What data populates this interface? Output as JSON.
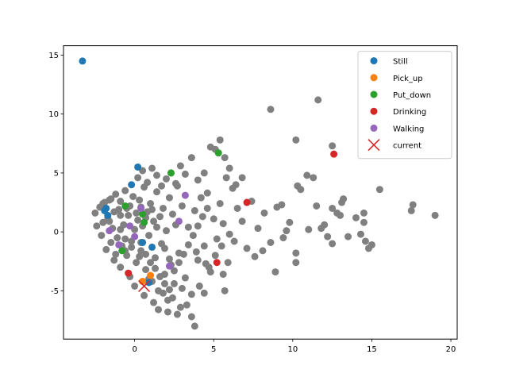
{
  "chart_data": {
    "type": "scatter",
    "title": "",
    "xlabel": "",
    "ylabel": "",
    "xlim": [
      -4.5,
      20.4
    ],
    "ylim": [
      -9.1,
      15.8
    ],
    "xticks": [
      0,
      5,
      10,
      15,
      20
    ],
    "yticks": [
      -5,
      0,
      5,
      10,
      15
    ],
    "grid": false,
    "legend_position": "top-right",
    "background": {
      "color": "#808080",
      "points": [
        [
          -2.5,
          1.6
        ],
        [
          -2.2,
          2.1
        ],
        [
          -2.0,
          0.8
        ],
        [
          -1.9,
          2.5
        ],
        [
          -1.7,
          1.2
        ],
        [
          -1.5,
          2.8
        ],
        [
          -1.4,
          0.3
        ],
        [
          -1.2,
          3.2
        ],
        [
          -1.1,
          -0.5
        ],
        [
          -1.0,
          1.9
        ],
        [
          -0.9,
          2.6
        ],
        [
          -0.8,
          -1.2
        ],
        [
          -0.7,
          0.6
        ],
        [
          -0.6,
          3.5
        ],
        [
          -0.5,
          -2.0
        ],
        [
          -0.4,
          1.4
        ],
        [
          -0.3,
          2.2
        ],
        [
          -0.2,
          -0.8
        ],
        [
          -0.1,
          3.0
        ],
        [
          0.0,
          0.2
        ],
        [
          0.1,
          -2.6
        ],
        [
          0.2,
          1.0
        ],
        [
          0.3,
          2.7
        ],
        [
          0.4,
          -1.6
        ],
        [
          0.5,
          0.5
        ],
        [
          0.6,
          3.8
        ],
        [
          0.7,
          -3.2
        ],
        [
          0.8,
          1.7
        ],
        [
          0.9,
          -0.3
        ],
        [
          1.0,
          2.4
        ],
        [
          1.1,
          -4.2
        ],
        [
          1.2,
          0.9
        ],
        [
          1.3,
          -2.2
        ],
        [
          1.4,
          3.4
        ],
        [
          1.5,
          -5.0
        ],
        [
          1.6,
          1.3
        ],
        [
          1.7,
          -1.0
        ],
        [
          1.8,
          2.0
        ],
        [
          1.9,
          -3.6
        ],
        [
          2.0,
          0.1
        ],
        [
          2.1,
          -5.8
        ],
        [
          2.2,
          2.9
        ],
        [
          2.3,
          -2.8
        ],
        [
          2.4,
          1.5
        ],
        [
          2.5,
          -4.4
        ],
        [
          2.6,
          0.6
        ],
        [
          2.7,
          3.9
        ],
        [
          2.8,
          -1.8
        ],
        [
          2.9,
          -6.4
        ],
        [
          3.0,
          2.2
        ],
        [
          3.2,
          -3.9
        ],
        [
          3.4,
          0.4
        ],
        [
          3.6,
          -5.3
        ],
        [
          3.8,
          1.8
        ],
        [
          4.0,
          -2.4
        ],
        [
          4.2,
          2.9
        ],
        [
          4.4,
          -1.2
        ],
        [
          4.6,
          3.3
        ],
        [
          4.8,
          -3.4
        ],
        [
          5.0,
          1.1
        ],
        [
          5.2,
          -0.6
        ],
        [
          5.4,
          2.4
        ],
        [
          5.6,
          0.7
        ],
        [
          5.8,
          4.6
        ],
        [
          6.0,
          -0.2
        ],
        [
          6.2,
          3.7
        ],
        [
          6.5,
          2.0
        ],
        [
          6.8,
          0.9
        ],
        [
          7.1,
          -1.4
        ],
        [
          7.4,
          2.6
        ],
        [
          7.8,
          0.3
        ],
        [
          8.2,
          1.6
        ],
        [
          8.6,
          -0.9
        ],
        [
          9.0,
          2.1
        ],
        [
          9.4,
          -0.5
        ],
        [
          9.8,
          0.8
        ],
        [
          10.2,
          -1.8
        ],
        [
          10.5,
          3.6
        ],
        [
          11.0,
          0.2
        ],
        [
          11.5,
          2.2
        ],
        [
          12.0,
          0.6
        ],
        [
          12.5,
          2.0
        ],
        [
          13.0,
          1.4
        ],
        [
          13.5,
          -0.4
        ],
        [
          14.0,
          1.2
        ],
        [
          14.5,
          0.8
        ],
        [
          15.0,
          -1.1
        ],
        [
          15.5,
          3.6
        ],
        [
          17.5,
          1.8
        ],
        [
          19.0,
          1.4
        ],
        [
          -2.4,
          0.5
        ],
        [
          -2.1,
          -0.3
        ],
        [
          -1.8,
          -1.5
        ],
        [
          -1.6,
          0.9
        ],
        [
          -1.3,
          -2.4
        ],
        [
          -0.9,
          -3.0
        ],
        [
          -0.6,
          -1.6
        ],
        [
          -0.3,
          -3.8
        ],
        [
          0.0,
          -4.6
        ],
        [
          0.3,
          -2.1
        ],
        [
          0.6,
          -5.4
        ],
        [
          0.9,
          -4.0
        ],
        [
          1.2,
          -6.0
        ],
        [
          1.5,
          -6.6
        ],
        [
          1.8,
          -5.2
        ],
        [
          2.1,
          -6.8
        ],
        [
          2.4,
          -5.6
        ],
        [
          2.7,
          -7.0
        ],
        [
          3.0,
          -4.8
        ],
        [
          3.3,
          -6.2
        ],
        [
          3.6,
          -7.2
        ],
        [
          3.8,
          -8.0
        ],
        [
          4.1,
          -4.6
        ],
        [
          4.4,
          -5.2
        ],
        [
          4.7,
          -3.0
        ],
        [
          5.1,
          -2.0
        ],
        [
          5.5,
          -1.2
        ],
        [
          5.9,
          -2.6
        ],
        [
          6.3,
          -0.8
        ],
        [
          0.2,
          4.6
        ],
        [
          0.5,
          5.2
        ],
        [
          0.8,
          4.2
        ],
        [
          1.1,
          5.4
        ],
        [
          1.4,
          4.8
        ],
        [
          1.7,
          3.9
        ],
        [
          2.0,
          4.5
        ],
        [
          2.3,
          5.0
        ],
        [
          2.6,
          4.1
        ],
        [
          2.9,
          5.6
        ],
        [
          3.2,
          4.9
        ],
        [
          3.6,
          6.3
        ],
        [
          4.0,
          4.4
        ],
        [
          4.4,
          5.0
        ],
        [
          4.8,
          7.2
        ],
        [
          5.1,
          7.0
        ],
        [
          5.4,
          7.8
        ],
        [
          5.7,
          6.3
        ],
        [
          6.0,
          5.4
        ],
        [
          6.4,
          4.0
        ],
        [
          6.8,
          4.6
        ],
        [
          8.6,
          10.4
        ],
        [
          10.2,
          7.8
        ],
        [
          11.6,
          11.2
        ],
        [
          12.5,
          7.3
        ],
        [
          10.9,
          4.8
        ],
        [
          11.3,
          4.6
        ],
        [
          10.3,
          3.9
        ],
        [
          12.8,
          1.6
        ],
        [
          13.2,
          2.8
        ],
        [
          14.6,
          -0.8
        ],
        [
          14.8,
          -1.4
        ],
        [
          14.3,
          -0.2
        ],
        [
          8.9,
          -3.4
        ],
        [
          10.2,
          -2.6
        ],
        [
          12.5,
          -1.0
        ],
        [
          14.5,
          1.6
        ],
        [
          17.6,
          2.3
        ],
        [
          9.3,
          2.3
        ],
        [
          9.6,
          0.1
        ],
        [
          11.8,
          0.3
        ],
        [
          12.2,
          -0.4
        ],
        [
          13.1,
          2.5
        ],
        [
          7.6,
          -2.1
        ],
        [
          8.1,
          -1.6
        ],
        [
          5.7,
          -5.0
        ],
        [
          5.6,
          -3.6
        ],
        [
          4.5,
          -2.7
        ],
        [
          3.9,
          -1.7
        ],
        [
          2.2,
          -2.3
        ],
        [
          1.9,
          -1.4
        ],
        [
          -1.5,
          -0.9
        ],
        [
          -1.2,
          -1.9
        ],
        [
          -0.9,
          0.2
        ],
        [
          -0.6,
          -0.6
        ],
        [
          -0.2,
          -1.3
        ],
        [
          0.4,
          -0.9
        ],
        [
          0.7,
          -1.9
        ],
        [
          1.0,
          -2.6
        ],
        [
          1.3,
          -3.1
        ],
        [
          1.6,
          -3.8
        ],
        [
          1.9,
          -4.4
        ],
        [
          2.2,
          -4.9
        ],
        [
          2.5,
          -3.3
        ],
        [
          2.8,
          -2.6
        ],
        [
          3.1,
          -1.9
        ],
        [
          3.4,
          -1.1
        ],
        [
          3.7,
          -0.3
        ],
        [
          4.0,
          0.5
        ],
        [
          4.3,
          1.3
        ],
        [
          4.6,
          2.0
        ],
        [
          -2.0,
          2.4
        ],
        [
          -1.6,
          2.7
        ],
        [
          -1.3,
          1.7
        ],
        [
          -0.9,
          1.4
        ],
        [
          -0.5,
          2.0
        ],
        [
          0.1,
          1.6
        ],
        [
          0.4,
          2.1
        ],
        [
          0.7,
          1.2
        ],
        [
          1.1,
          1.9
        ],
        [
          1.4,
          0.4
        ]
      ]
    },
    "series": [
      {
        "name": "Still",
        "color": "#1f77b4",
        "marker": "circle",
        "points": [
          [
            -3.3,
            14.5
          ],
          [
            0.2,
            5.5
          ],
          [
            -0.2,
            4.0
          ],
          [
            -1.8,
            2.0
          ],
          [
            -1.7,
            1.4
          ],
          [
            0.5,
            -0.9
          ],
          [
            1.1,
            -1.3
          ],
          [
            0.9,
            -4.3
          ],
          [
            -1.9,
            1.8
          ]
        ]
      },
      {
        "name": "Pick_up",
        "color": "#ff7f0e",
        "marker": "circle",
        "points": [
          [
            1.0,
            -3.7
          ],
          [
            0.5,
            -4.2
          ]
        ]
      },
      {
        "name": "Put_down",
        "color": "#2ca02c",
        "marker": "circle",
        "points": [
          [
            5.3,
            6.7
          ],
          [
            2.3,
            5.0
          ],
          [
            0.5,
            1.5
          ],
          [
            0.6,
            0.8
          ],
          [
            -0.6,
            2.2
          ],
          [
            -0.8,
            -1.6
          ]
        ]
      },
      {
        "name": "Drinking",
        "color": "#d62728",
        "marker": "circle",
        "points": [
          [
            7.1,
            2.5
          ],
          [
            12.6,
            6.6
          ],
          [
            5.2,
            -2.6
          ],
          [
            -0.4,
            -3.5
          ]
        ]
      },
      {
        "name": "Walking",
        "color": "#9467bd",
        "marker": "circle",
        "points": [
          [
            3.2,
            3.1
          ],
          [
            0.4,
            2.0
          ],
          [
            -1.6,
            0.1
          ],
          [
            -0.3,
            0.5
          ],
          [
            -1.0,
            -1.1
          ],
          [
            2.2,
            -2.9
          ],
          [
            0.0,
            -0.4
          ],
          [
            2.8,
            0.9
          ]
        ]
      },
      {
        "name": "current",
        "color": "#d62728",
        "marker": "x",
        "points": [
          [
            0.6,
            -4.6
          ]
        ]
      }
    ]
  }
}
